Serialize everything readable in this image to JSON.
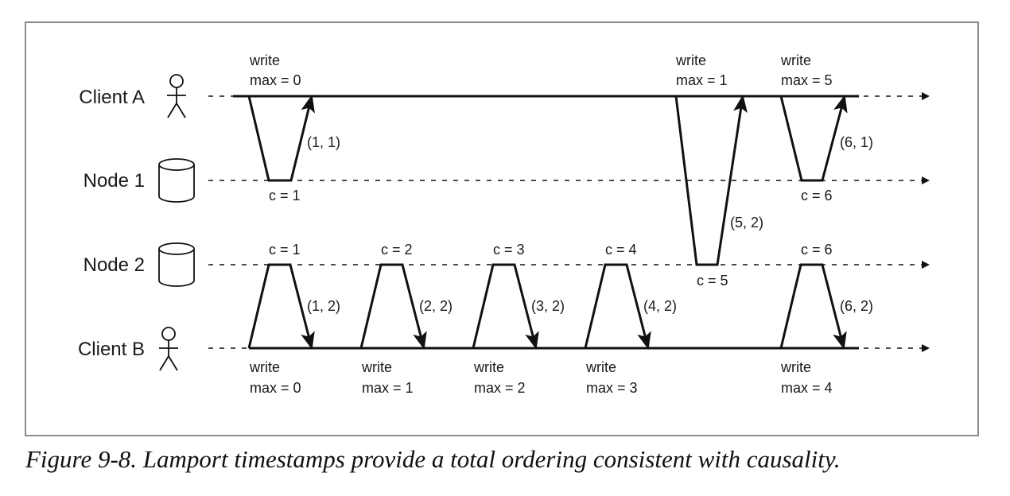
{
  "caption": "Figure 9-8. Lamport timestamps provide a total ordering consistent with causality.",
  "processes": {
    "client_a": "Client A",
    "node_1": "Node 1",
    "node_2": "Node 2",
    "client_b": "Client B"
  },
  "icons": {
    "client": "person-icon",
    "node": "database-cylinder-icon",
    "timeline_end": "arrowhead-icon"
  },
  "labels": {
    "a_write_1": "write",
    "a_max_1": "max = 0",
    "a_write_2": "write",
    "a_max_2": "max = 1",
    "a_write_3": "write",
    "a_max_3": "max = 5",
    "n1_c_1": "c = 1",
    "n1_c_2": "c = 6",
    "ts_1_1": "(1, 1)",
    "ts_6_1": "(6, 1)",
    "ts_5_2": "(5, 2)",
    "n2_c_1": "c = 1",
    "n2_c_2": "c = 2",
    "n2_c_3": "c = 3",
    "n2_c_4": "c = 4",
    "n2_c_5": "c = 5",
    "n2_c_6": "c = 6",
    "ts_1_2": "(1, 2)",
    "ts_2_2": "(2, 2)",
    "ts_3_2": "(3, 2)",
    "ts_4_2": "(4, 2)",
    "ts_6_2": "(6, 2)",
    "b_write_1": "write",
    "b_max_1": "max = 0",
    "b_write_2": "write",
    "b_max_2": "max = 1",
    "b_write_3": "write",
    "b_max_3": "max = 2",
    "b_write_4": "write",
    "b_max_4": "max = 3",
    "b_write_5": "write",
    "b_max_5": "max = 4"
  }
}
